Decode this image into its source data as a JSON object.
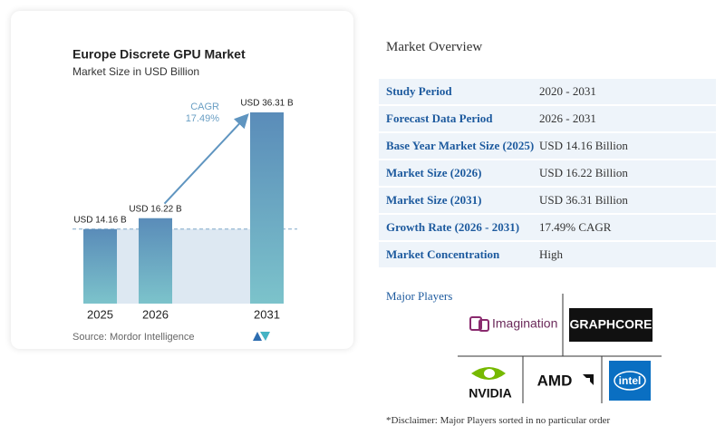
{
  "chart_data": {
    "type": "bar",
    "title": "Europe Discrete GPU Market",
    "subtitle": "Market Size in USD Billion",
    "categories": [
      "2025",
      "2026",
      "2031"
    ],
    "values": [
      14.16,
      16.22,
      36.31
    ],
    "value_labels": [
      "USD 14.16 B",
      "USD 16.22 B",
      "USD 36.31 B"
    ],
    "annotation": {
      "label": "CAGR",
      "value": "17.49%"
    },
    "source": "Source: Mordor Intelligence"
  },
  "overview": {
    "title": "Market Overview",
    "rows": [
      [
        "Study Period",
        "2020 - 2031"
      ],
      [
        "Forecast Data Period",
        "2026 - 2031"
      ],
      [
        "Base Year Market Size (2025)",
        "USD 14.16 Billion"
      ],
      [
        "Market Size (2026)",
        "USD 16.22 Billion"
      ],
      [
        "Market Size (2031)",
        "USD 36.31 Billion"
      ],
      [
        "Growth Rate (2026 - 2031)",
        "17.49% CAGR"
      ],
      [
        "Market Concentration",
        "High"
      ]
    ]
  },
  "players": {
    "title": "Major Players",
    "logos": [
      "Imagination",
      "GRAPHCORE",
      "NVIDIA",
      "AMD",
      "intel"
    ]
  },
  "disclaimer": "*Disclaimer: Major Players sorted in no particular order"
}
